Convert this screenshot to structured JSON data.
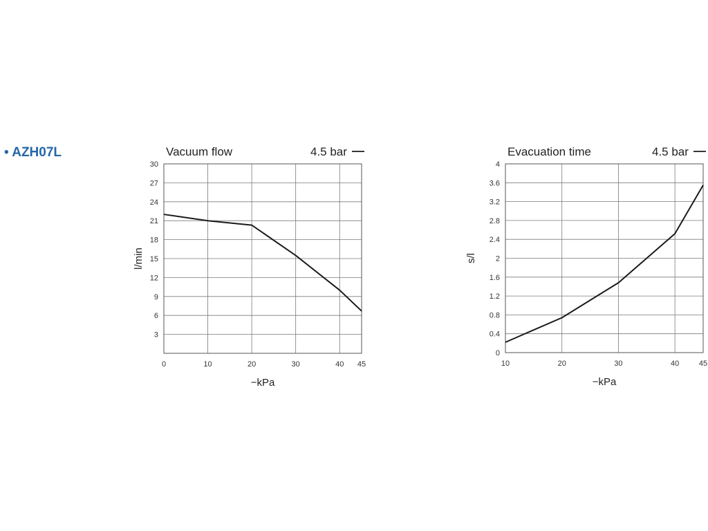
{
  "product": {
    "bullet": "•",
    "model": "AZH07L"
  },
  "chart_data": [
    {
      "type": "line",
      "title": "Vacuum flow",
      "legend": "4.5 bar",
      "xlabel": "−kPa",
      "ylabel": "l/min",
      "x_ticks": [
        0,
        10,
        20,
        30,
        40,
        45
      ],
      "y_ticks": [
        3,
        6,
        9,
        12,
        15,
        18,
        21,
        24,
        27,
        30
      ],
      "xlim": [
        0,
        45
      ],
      "ylim": [
        0,
        30
      ],
      "grid": true,
      "series": [
        {
          "name": "4.5 bar",
          "x": [
            0,
            10,
            20,
            30,
            40,
            45
          ],
          "y": [
            22.0,
            21.0,
            20.3,
            15.5,
            10.0,
            6.7
          ]
        }
      ],
      "color": "#1a1a1a"
    },
    {
      "type": "line",
      "title": "Evacuation time",
      "legend": "4.5 bar",
      "xlabel": "−kPa",
      "ylabel": "s/l",
      "x_ticks": [
        10,
        20,
        30,
        40,
        45
      ],
      "y_ticks": [
        0,
        0.4,
        0.8,
        1.2,
        1.6,
        2,
        2.4,
        2.8,
        3.2,
        3.6,
        4
      ],
      "xlim": [
        10,
        45
      ],
      "ylim": [
        0,
        4
      ],
      "grid": true,
      "series": [
        {
          "name": "4.5 bar",
          "x": [
            10,
            20,
            30,
            40,
            45
          ],
          "y": [
            0.22,
            0.74,
            1.48,
            2.52,
            3.55
          ]
        }
      ],
      "color": "#1a1a1a"
    }
  ]
}
